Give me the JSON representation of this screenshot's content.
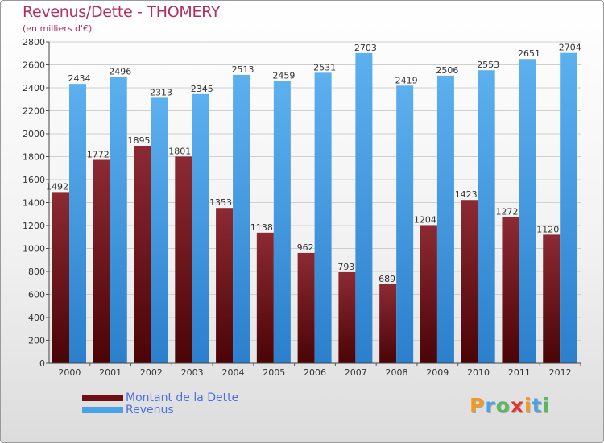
{
  "chart_data": {
    "type": "bar",
    "title": "Revenus/Dette - THOMERY",
    "subtitle": "(en milliers d'€)",
    "categories": [
      "2000",
      "2001",
      "2002",
      "2003",
      "2004",
      "2005",
      "2006",
      "2007",
      "2008",
      "2009",
      "2010",
      "2011",
      "2012"
    ],
    "series": [
      {
        "name": "Montant de la Dette",
        "color": "#6e0f14",
        "values": [
          1492,
          1772,
          1895,
          1801,
          1353,
          1138,
          962,
          793,
          689,
          1204,
          1423,
          1272,
          1120
        ],
        "labels": [
          "1492",
          "1772",
          "1895",
          "1801",
          "1353",
          "1138",
          "962",
          "793",
          "689",
          "1204",
          "1423",
          "1272",
          "1120"
        ]
      },
      {
        "name": "Revenus",
        "color": "#4aa3e6",
        "values": [
          2434,
          2496,
          2313,
          2345,
          2513,
          2459,
          2531,
          2703,
          2419,
          2506,
          2553,
          2651,
          2704
        ],
        "labels": [
          "2434",
          "2496",
          "2313",
          "2345",
          "2513",
          "2459",
          "2531",
          "2703",
          "2419",
          "2506",
          "2553",
          "2651",
          "2704"
        ]
      }
    ],
    "ylim": [
      0,
      2800
    ],
    "yticks": [
      0,
      200,
      400,
      600,
      800,
      1000,
      1200,
      1400,
      1600,
      1800,
      2000,
      2200,
      2400,
      2600,
      2800
    ],
    "grid": true,
    "legend": "bottom-left"
  },
  "logo": {
    "text": "Proxiti",
    "colors": [
      "#f29a1f",
      "#4aa3e6",
      "#5cb85c",
      "#e5322d",
      "#f29a1f",
      "#4aa3e6",
      "#5cb85c"
    ]
  }
}
